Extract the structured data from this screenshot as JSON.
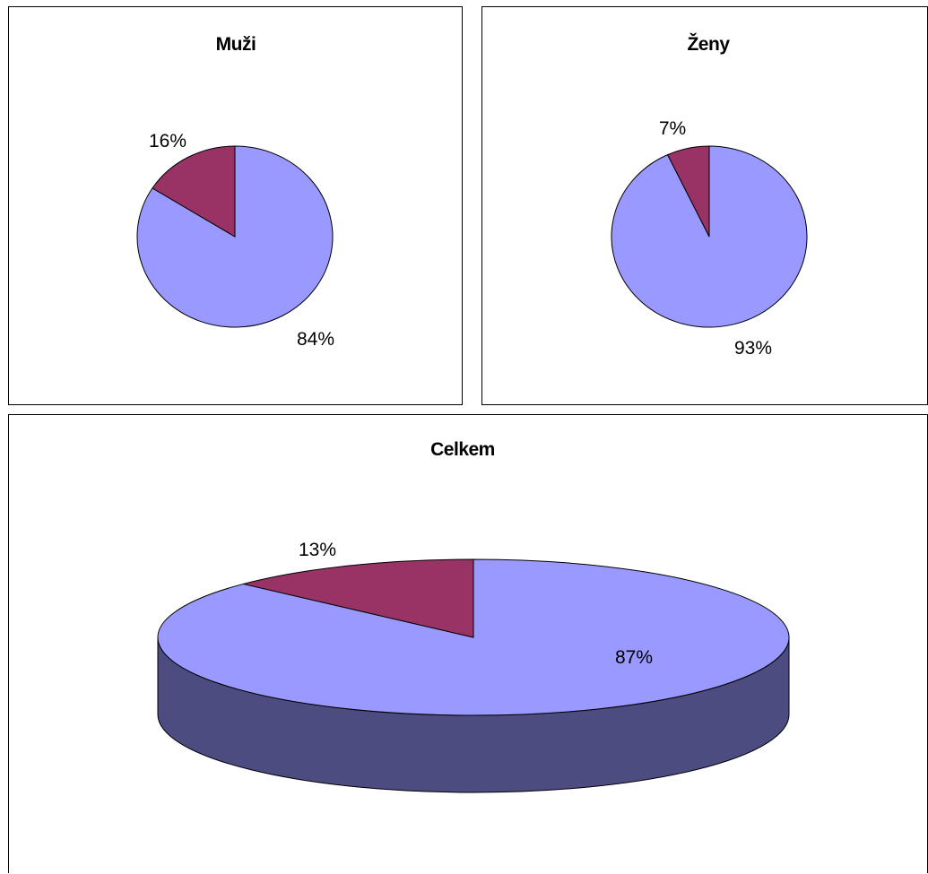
{
  "colors": {
    "slice_large": "#9999FF",
    "slice_small": "#993366",
    "side_large": "#4C4C80",
    "side_small": "#4D1A33",
    "outline": "#000000"
  },
  "chart_data": [
    {
      "type": "pie",
      "title": "Muži",
      "values": [
        84,
        16
      ],
      "labels": [
        "84%",
        "16%"
      ],
      "legend": "none"
    },
    {
      "type": "pie",
      "title": "Ženy",
      "values": [
        93,
        7
      ],
      "labels": [
        "93%",
        "7%"
      ],
      "legend": "none"
    },
    {
      "type": "pie",
      "style": "3d",
      "title": "Celkem",
      "values": [
        87,
        13
      ],
      "labels": [
        "87%",
        "13%"
      ],
      "legend": "none"
    }
  ]
}
